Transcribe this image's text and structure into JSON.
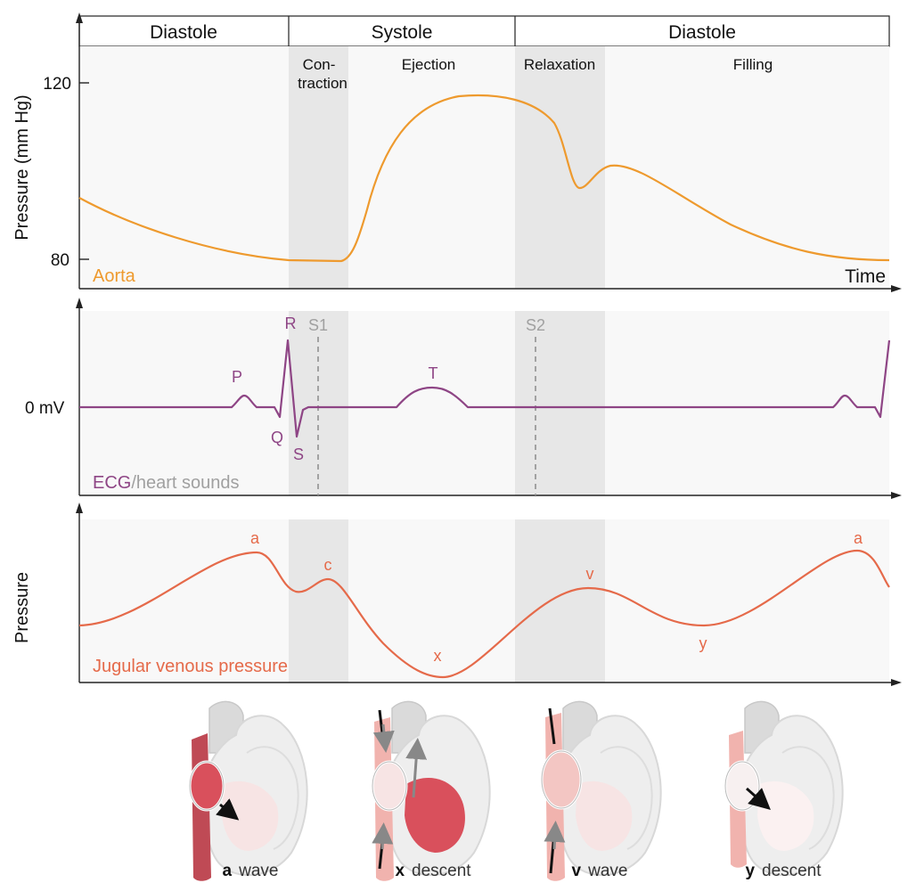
{
  "colors": {
    "aorta": "#EE9A2E",
    "ecg": "#8E4585",
    "sounds": "#A0A0A0",
    "jvp": "#E56A4A",
    "panel_bg": "#F8F8F8",
    "shade": "#E7E7E7",
    "axis": "#222222"
  },
  "phases": {
    "top": [
      "Diastole",
      "Systole",
      "Diastole"
    ],
    "sub": {
      "contraction_line1": "Con-",
      "contraction_line2": "traction",
      "ejection": "Ejection",
      "relaxation": "Relaxation",
      "filling": "Filling"
    }
  },
  "aorta_panel": {
    "ylabel": "Pressure (mm Hg)",
    "ticks": [
      "120",
      "80"
    ],
    "xlabel": "Time",
    "series_label": "Aorta"
  },
  "ecg_panel": {
    "zero_label": "0 mV",
    "series_label_ecg": "ECG",
    "series_label_sounds": "/heart sounds",
    "waves": [
      "P",
      "R",
      "Q",
      "S",
      "T"
    ],
    "sounds": [
      "S1",
      "S2"
    ]
  },
  "jvp_panel": {
    "ylabel": "Pressure",
    "series_label": "Jugular venous pressure",
    "waves": [
      "a",
      "c",
      "x",
      "v",
      "y",
      "a"
    ]
  },
  "hearts": [
    {
      "letter": "a",
      "label": "wave",
      "icon": "heart-a-wave-icon"
    },
    {
      "letter": "x",
      "label": "descent",
      "icon": "heart-x-descent-icon"
    },
    {
      "letter": "v",
      "label": "wave",
      "icon": "heart-v-wave-icon"
    },
    {
      "letter": "y",
      "label": "descent",
      "icon": "heart-y-descent-icon"
    }
  ]
}
